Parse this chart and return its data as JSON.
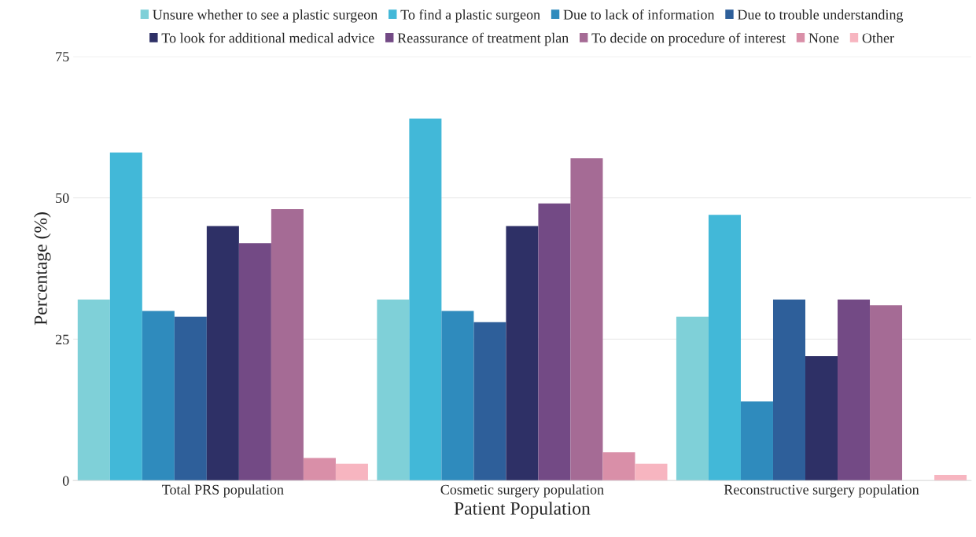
{
  "chart_data": {
    "type": "bar",
    "xlabel": "Patient Population",
    "ylabel": "Percentage (%)",
    "categories": [
      "Total PRS population",
      "Cosmetic surgery population",
      "Reconstructive surgery population"
    ],
    "series": [
      {
        "name": "Unsure whether to see a plastic surgeon",
        "color": "#7fd0d8",
        "values": [
          32,
          32,
          29
        ]
      },
      {
        "name": "To find a plastic surgeon",
        "color": "#42b8d8",
        "values": [
          58,
          64,
          47
        ]
      },
      {
        "name": "Due to lack of information",
        "color": "#2f8bbd",
        "values": [
          30,
          30,
          14
        ]
      },
      {
        "name": "Due to trouble understanding",
        "color": "#2e5f9a",
        "values": [
          29,
          28,
          32
        ]
      },
      {
        "name": "To look for additional medical advice",
        "color": "#2e3066",
        "values": [
          45,
          45,
          22
        ]
      },
      {
        "name": "Reassurance of treatment plan",
        "color": "#734a85",
        "values": [
          42,
          49,
          32
        ]
      },
      {
        "name": "To decide on procedure of interest",
        "color": "#a56b95",
        "values": [
          48,
          57,
          31
        ]
      },
      {
        "name": "None",
        "color": "#d98fa8",
        "values": [
          4,
          5,
          0
        ]
      },
      {
        "name": "Other",
        "color": "#f7b5c0",
        "values": [
          3,
          3,
          1
        ]
      }
    ],
    "ylim": [
      0,
      75
    ],
    "yticks": [
      0,
      25,
      50,
      75
    ],
    "grid": "y",
    "legend": "top"
  }
}
